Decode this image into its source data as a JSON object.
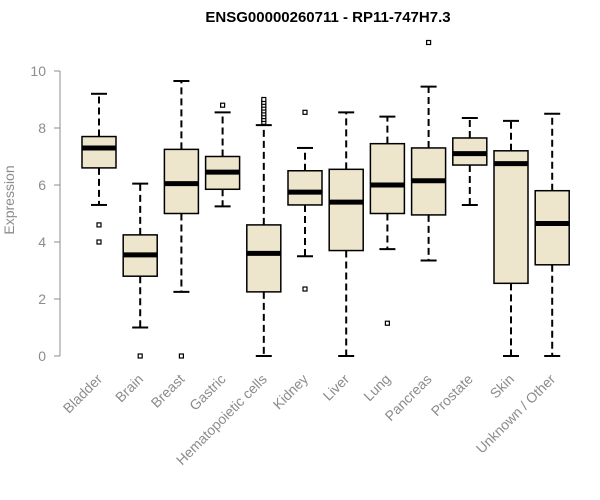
{
  "chart_data": {
    "type": "box",
    "title": "ENSG00000260711 - RP11-747H7.3",
    "xlabel": "",
    "ylabel": "Expression",
    "ylim": [
      0,
      10
    ],
    "yticks": [
      0,
      2,
      4,
      6,
      8,
      10
    ],
    "box_fill": "#ede6cc",
    "axis_color": "#8c8c8c",
    "categories": [
      "Bladder",
      "Brain",
      "Breast",
      "Gastric",
      "Hematopoietic cells",
      "Kidney",
      "Liver",
      "Lung",
      "Pancreas",
      "Prostate",
      "Skin",
      "Unknown / Other"
    ],
    "boxes": [
      {
        "name": "Bladder",
        "min": 5.3,
        "q1": 6.6,
        "median": 7.3,
        "q3": 7.7,
        "max": 9.2,
        "outliers": [
          4.6,
          4.0
        ]
      },
      {
        "name": "Brain",
        "min": 1.0,
        "q1": 2.8,
        "median": 3.55,
        "q3": 4.25,
        "max": 6.05,
        "outliers": [
          0.0
        ]
      },
      {
        "name": "Breast",
        "min": 2.25,
        "q1": 5.0,
        "median": 6.05,
        "q3": 7.25,
        "max": 9.65,
        "outliers": [
          0.0
        ]
      },
      {
        "name": "Gastric",
        "min": 5.25,
        "q1": 5.85,
        "median": 6.45,
        "q3": 7.0,
        "max": 8.55,
        "outliers": [
          8.8
        ]
      },
      {
        "name": "Hematopoietic cells",
        "min": 0.0,
        "q1": 2.25,
        "median": 3.6,
        "q3": 4.6,
        "max": 8.1,
        "outliers": [
          8.2,
          8.3,
          8.4,
          8.5,
          8.6,
          8.7,
          8.8,
          8.9,
          9.0
        ]
      },
      {
        "name": "Kidney",
        "min": 3.5,
        "q1": 5.3,
        "median": 5.75,
        "q3": 6.5,
        "max": 7.3,
        "outliers": [
          8.55,
          2.35
        ]
      },
      {
        "name": "Liver",
        "min": 0.0,
        "q1": 3.7,
        "median": 5.4,
        "q3": 6.55,
        "max": 8.55,
        "outliers": []
      },
      {
        "name": "Lung",
        "min": 3.75,
        "q1": 5.0,
        "median": 6.0,
        "q3": 7.45,
        "max": 8.4,
        "outliers": [
          1.15
        ]
      },
      {
        "name": "Pancreas",
        "min": 3.35,
        "q1": 4.95,
        "median": 6.15,
        "q3": 7.3,
        "max": 9.45,
        "outliers": [
          11.0
        ]
      },
      {
        "name": "Prostate",
        "min": 5.3,
        "q1": 6.7,
        "median": 7.1,
        "q3": 7.65,
        "max": 8.35,
        "outliers": []
      },
      {
        "name": "Skin",
        "min": 0.0,
        "q1": 2.55,
        "median": 6.75,
        "q3": 7.2,
        "max": 8.25,
        "outliers": []
      },
      {
        "name": "Unknown / Other",
        "min": 0.0,
        "q1": 3.2,
        "median": 4.65,
        "q3": 5.8,
        "max": 8.5,
        "outliers": []
      }
    ]
  }
}
